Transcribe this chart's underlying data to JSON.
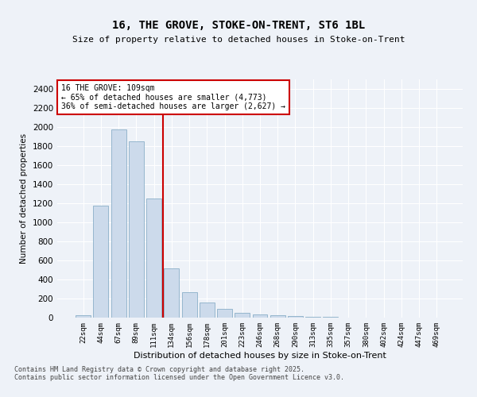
{
  "title1": "16, THE GROVE, STOKE-ON-TRENT, ST6 1BL",
  "title2": "Size of property relative to detached houses in Stoke-on-Trent",
  "xlabel": "Distribution of detached houses by size in Stoke-on-Trent",
  "ylabel": "Number of detached properties",
  "categories": [
    "22sqm",
    "44sqm",
    "67sqm",
    "89sqm",
    "111sqm",
    "134sqm",
    "156sqm",
    "178sqm",
    "201sqm",
    "223sqm",
    "246sqm",
    "268sqm",
    "290sqm",
    "313sqm",
    "335sqm",
    "357sqm",
    "380sqm",
    "402sqm",
    "424sqm",
    "447sqm",
    "469sqm"
  ],
  "values": [
    25,
    1175,
    1975,
    1850,
    1250,
    515,
    270,
    155,
    90,
    50,
    35,
    25,
    15,
    8,
    5,
    4,
    3,
    3,
    2,
    2,
    1
  ],
  "bar_color": "#ccdaeb",
  "bar_edgecolor": "#8aafc8",
  "vline_x": 4.5,
  "vline_color": "#cc0000",
  "annotation_text": "16 THE GROVE: 109sqm\n← 65% of detached houses are smaller (4,773)\n36% of semi-detached houses are larger (2,627) →",
  "annotation_box_color": "#ffffff",
  "annotation_box_edgecolor": "#cc0000",
  "ylim": [
    0,
    2500
  ],
  "yticks": [
    0,
    200,
    400,
    600,
    800,
    1000,
    1200,
    1400,
    1600,
    1800,
    2000,
    2200,
    2400
  ],
  "bg_color": "#eef2f8",
  "grid_color": "#ffffff",
  "footer1": "Contains HM Land Registry data © Crown copyright and database right 2025.",
  "footer2": "Contains public sector information licensed under the Open Government Licence v3.0."
}
